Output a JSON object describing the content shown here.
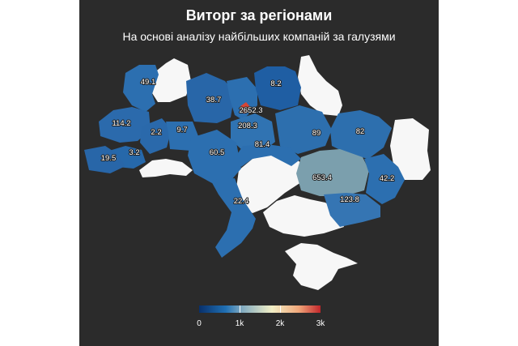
{
  "title": "Виторг за регіонами",
  "subtitle": "На основі аналізу найбільших компаній за галузями",
  "chart_data": {
    "type": "choropleth",
    "title": "Виторг за регіонами",
    "subtitle": "На основі аналізу найбільших компаній за галузями",
    "scale": {
      "min": 0,
      "max": 3000,
      "ticks": [
        "0",
        "1k",
        "2k",
        "3k"
      ],
      "tick_values": [
        0,
        1000,
        2000,
        3000
      ]
    },
    "regions": [
      {
        "value": 49.1,
        "label": "49.1"
      },
      {
        "value": 38.7,
        "label": "38.7"
      },
      {
        "value": 2652.3,
        "label": "2652.3"
      },
      {
        "value": 8.2,
        "label": "8.2"
      },
      {
        "value": 114.2,
        "label": "114.2"
      },
      {
        "value": 2.2,
        "label": "2.2"
      },
      {
        "value": 9.7,
        "label": "9.7"
      },
      {
        "value": 208.3,
        "label": "208.3"
      },
      {
        "value": 89,
        "label": "89"
      },
      {
        "value": 82,
        "label": "82"
      },
      {
        "value": 81.4,
        "label": "81.4"
      },
      {
        "value": 3.2,
        "label": "3.2"
      },
      {
        "value": 60.5,
        "label": "60.5"
      },
      {
        "value": 19.5,
        "label": "19.5"
      },
      {
        "value": 653.4,
        "label": "653.4"
      },
      {
        "value": 42.2,
        "label": "42.2"
      },
      {
        "value": 22.4,
        "label": "22.4"
      },
      {
        "value": 123.8,
        "label": "123.8"
      }
    ],
    "no_data_color": "#f7f7f7",
    "colors": {
      "low": "#2166ac",
      "mid": "#7fa9c0",
      "high": "#d73027"
    }
  }
}
